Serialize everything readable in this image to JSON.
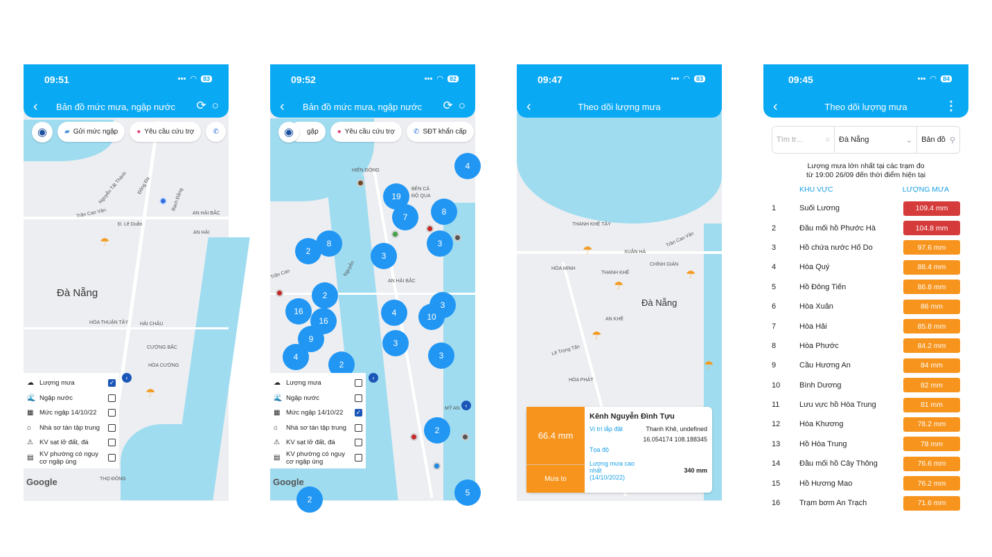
{
  "screens": [
    {
      "time": "09:51",
      "battery": "83",
      "title": "Bản đồ mức mưa, ngập nước",
      "chips": [
        "Gửi mức ngập",
        "Yêu cầu cứu trợ"
      ],
      "legend": [
        {
          "icon": "☁",
          "label": "Lượng mưa",
          "checked": true
        },
        {
          "icon": "🌊",
          "label": "Ngập nước",
          "checked": false
        },
        {
          "icon": "▦",
          "label": "Mức ngập 14/10/22",
          "checked": false
        },
        {
          "icon": "⌂",
          "label": "Nhà sơ tán tập trung",
          "checked": false
        },
        {
          "icon": "⚠",
          "label": "KV sạt lở đất, đá",
          "checked": false
        },
        {
          "icon": "▤",
          "label": "KV phường có nguy cơ ngập úng",
          "checked": false
        }
      ],
      "map_labels": [
        "Nguyễn Tất Thành",
        "Đống Đa",
        "Bạch Đằng",
        "AN HẢI BẮC",
        "Trần Cao Vân",
        "Đ. Lê Duẩn",
        "AN HẢI",
        "Đà Nẵng",
        "HÒA THUẬN TÂY",
        "HẢI CHÂU",
        "CƯỜNG BẮC",
        "HÒA CƯỜNG",
        "THỌ ĐÔNG"
      ],
      "google": "Google"
    },
    {
      "time": "09:52",
      "battery": "82",
      "title": "Bản đồ mức mưa, ngập nước",
      "chips": [
        "gập",
        "Yêu cầu cứu trợ",
        "SĐT khẩn cấp"
      ],
      "legend": [
        {
          "icon": "☁",
          "label": "Lượng mưa",
          "checked": false
        },
        {
          "icon": "🌊",
          "label": "Ngập nước",
          "checked": false
        },
        {
          "icon": "▦",
          "label": "Mức ngập 14/10/22",
          "checked": true
        },
        {
          "icon": "⌂",
          "label": "Nhà sơ tán tập trung",
          "checked": false
        },
        {
          "icon": "⚠",
          "label": "KV sạt lở đất, đá",
          "checked": false
        },
        {
          "icon": "▤",
          "label": "KV phường có nguy cơ ngập úng",
          "checked": false
        }
      ],
      "map_labels": [
        "HIÊN ĐÔNG",
        "BÊN CÁ",
        "ĐỘ QUA",
        "AN HẢI BẮC",
        "Nguyễn",
        "Trần Cao",
        "MỸ AN"
      ],
      "clusters": [
        "4",
        "19",
        "7",
        "8",
        "3",
        "2",
        "8",
        "3",
        "2",
        "16",
        "16",
        "4",
        "3",
        "10",
        "9",
        "3",
        "4",
        "2",
        "3",
        "2",
        "5",
        "2"
      ],
      "google": "Google"
    },
    {
      "time": "09:47",
      "battery": "83",
      "title": "Theo dõi lượng mưa",
      "map_labels": [
        "THANH KHÊ TÂY",
        "XUÂN HÀ",
        "Trần Cao Vân",
        "HÒA MINH",
        "THANH KHÊ",
        "CHÍNH GIÁN",
        "Đà Nẵng",
        "AN KHÊ",
        "Lê Trọng Tấn",
        "HÒA PHÁT"
      ],
      "card": {
        "value": "66.4 mm",
        "level": "Mưa to",
        "name": "Kênh Nguyễn Đình Tựu",
        "location_label": "Vị trí lắp đặt",
        "location": "Thanh Khê, undefined",
        "coord_label": "Tọa độ",
        "coord": "16.054174 108.188345",
        "max_label": "Lượng mưa cao nhất (14/10/2022)",
        "max": "340 mm"
      }
    },
    {
      "time": "09:45",
      "battery": "84",
      "title": "Theo dõi lượng mưa",
      "search_placeholder": "Tìm tr...",
      "province": "Đà Nẵng",
      "map_button": "Bản đồ",
      "subtitle_1": "Lượng mưa lớn nhất tại các trạm đo",
      "subtitle_2": "từ 19:00 26/09 đến thời điểm hiện tại",
      "col_area": "KHU VỰC",
      "col_rain": "LƯỢNG MƯA",
      "rows": [
        {
          "n": "1",
          "name": "Suối Lương",
          "value": "109.4 mm",
          "level": "high"
        },
        {
          "n": "2",
          "name": "Đầu mối hồ Phước Hà",
          "value": "104.8 mm",
          "level": "high"
        },
        {
          "n": "3",
          "name": "Hồ chứa nước Hố Do",
          "value": "97.6 mm",
          "level": "heavy"
        },
        {
          "n": "4",
          "name": "Hòa Quý",
          "value": "88.4 mm",
          "level": "heavy"
        },
        {
          "n": "5",
          "name": "Hồ Đông Tiến",
          "value": "86.8 mm",
          "level": "heavy"
        },
        {
          "n": "6",
          "name": "Hòa Xuân",
          "value": "86 mm",
          "level": "heavy"
        },
        {
          "n": "7",
          "name": "Hòa Hải",
          "value": "85.8 mm",
          "level": "heavy"
        },
        {
          "n": "8",
          "name": "Hòa Phước",
          "value": "84.2 mm",
          "level": "heavy"
        },
        {
          "n": "9",
          "name": "Cầu Hương An",
          "value": "84 mm",
          "level": "heavy"
        },
        {
          "n": "10",
          "name": "Bình Dương",
          "value": "82 mm",
          "level": "heavy"
        },
        {
          "n": "11",
          "name": "Lưu vực hồ Hòa Trung",
          "value": "81 mm",
          "level": "heavy"
        },
        {
          "n": "12",
          "name": "Hòa Khương",
          "value": "78.2 mm",
          "level": "heavy"
        },
        {
          "n": "13",
          "name": "Hồ Hòa Trung",
          "value": "78 mm",
          "level": "heavy"
        },
        {
          "n": "14",
          "name": "Đầu mối hồ Cây Thông",
          "value": "76.6 mm",
          "level": "heavy"
        },
        {
          "n": "15",
          "name": "Hồ Hương Mao",
          "value": "76.2 mm",
          "level": "heavy"
        },
        {
          "n": "16",
          "name": "Trạm bơm An Trạch",
          "value": "71.6 mm",
          "level": "heavy"
        }
      ]
    }
  ],
  "colors": {
    "header": "#0aa9f4",
    "high": "#d63b3b",
    "heavy": "#f7941d",
    "accent": "#1aa0e6"
  }
}
